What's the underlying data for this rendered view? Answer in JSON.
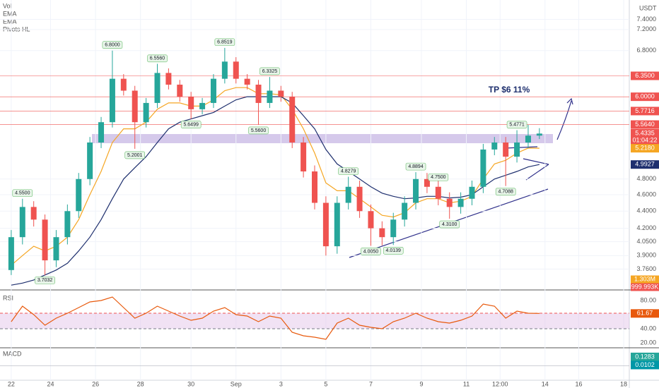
{
  "chart_data": [
    {
      "type": "candlestick",
      "legend": [
        "Vol",
        "EMA",
        "EMA",
        "Pivots HL"
      ],
      "currency": "USDT",
      "annotation": "TP $6 11%",
      "x": [
        0,
        1,
        2,
        3,
        4,
        5,
        6,
        7,
        8,
        9,
        10,
        11,
        12,
        13,
        14,
        15,
        16,
        17,
        18,
        19,
        20,
        21,
        22,
        23,
        24,
        25,
        26,
        27,
        28,
        29,
        30,
        31,
        32,
        33,
        34,
        35,
        36,
        37,
        38,
        39,
        40,
        41,
        42,
        43,
        44,
        45,
        46,
        47
      ],
      "open": [
        3.75,
        4.1,
        4.45,
        4.3,
        3.85,
        4.1,
        4.4,
        4.8,
        5.3,
        5.6,
        6.3,
        6.1,
        5.6,
        5.9,
        6.4,
        6.2,
        6.0,
        5.8,
        5.9,
        6.3,
        6.6,
        6.3,
        6.2,
        5.9,
        6.1,
        6.0,
        5.3,
        4.9,
        4.5,
        4.0,
        4.5,
        4.7,
        4.4,
        4.2,
        4.1,
        4.3,
        4.5,
        4.8,
        4.7,
        4.55,
        4.45,
        4.55,
        4.7,
        5.2,
        5.3,
        5.1,
        5.3,
        5.4
      ],
      "high": [
        4.18,
        4.55,
        4.52,
        4.36,
        4.18,
        4.48,
        4.88,
        5.38,
        5.68,
        6.8,
        6.38,
        6.18,
        5.98,
        6.56,
        6.48,
        6.28,
        6.08,
        5.98,
        6.38,
        6.85,
        6.68,
        6.38,
        6.28,
        6.33,
        6.18,
        6.08,
        5.38,
        4.98,
        4.58,
        4.58,
        4.83,
        4.78,
        4.48,
        4.28,
        4.38,
        4.58,
        4.89,
        4.88,
        4.78,
        4.63,
        4.63,
        4.78,
        5.28,
        5.38,
        5.38,
        5.48,
        5.56,
        5.51
      ],
      "low": [
        3.7,
        4.02,
        4.22,
        3.7,
        3.78,
        4.02,
        4.32,
        4.72,
        5.22,
        5.52,
        6.02,
        5.21,
        5.52,
        5.82,
        6.12,
        5.92,
        5.65,
        5.72,
        5.82,
        6.22,
        6.22,
        6.12,
        5.56,
        5.82,
        5.92,
        5.22,
        4.82,
        4.42,
        3.9,
        3.92,
        4.42,
        4.32,
        4.005,
        4.01,
        4.0139,
        4.22,
        4.42,
        4.62,
        4.47,
        4.31,
        4.37,
        4.47,
        4.62,
        5.12,
        4.71,
        5.02,
        5.22,
        5.35
      ],
      "close": [
        4.1,
        4.45,
        4.3,
        3.85,
        4.1,
        4.4,
        4.8,
        5.3,
        5.6,
        6.3,
        6.1,
        5.6,
        5.9,
        6.4,
        6.2,
        6.0,
        5.8,
        5.9,
        6.3,
        6.6,
        6.3,
        6.2,
        5.9,
        6.1,
        6.0,
        5.3,
        4.9,
        4.5,
        4.0,
        4.5,
        4.7,
        4.4,
        4.2,
        4.1,
        4.3,
        4.5,
        4.8,
        4.7,
        4.55,
        4.45,
        4.55,
        4.7,
        5.2,
        5.3,
        5.1,
        5.3,
        5.4,
        5.43
      ],
      "up_color": "#26a69a",
      "down_color": "#ef5350",
      "series": [
        {
          "color": "#f5a623",
          "values": [
            3.8,
            3.9,
            4.0,
            3.95,
            4.0,
            4.1,
            4.3,
            4.6,
            4.9,
            5.3,
            5.5,
            5.5,
            5.6,
            5.8,
            5.9,
            5.9,
            5.85,
            5.85,
            5.95,
            6.1,
            6.15,
            6.15,
            6.05,
            6.05,
            6.03,
            5.8,
            5.5,
            5.15,
            4.75,
            4.65,
            4.65,
            4.55,
            4.45,
            4.35,
            4.33,
            4.38,
            4.5,
            4.55,
            4.55,
            4.5,
            4.52,
            4.58,
            4.8,
            5.0,
            5.05,
            5.15,
            5.22,
            5.218
          ]
        },
        {
          "color": "#1e2f6e",
          "values": [
            3.6,
            3.62,
            3.65,
            3.7,
            3.75,
            3.82,
            3.95,
            4.1,
            4.3,
            4.55,
            4.8,
            4.95,
            5.1,
            5.3,
            5.5,
            5.6,
            5.65,
            5.7,
            5.75,
            5.85,
            5.95,
            6.0,
            6.0,
            6.0,
            6.0,
            5.9,
            5.7,
            5.5,
            5.2,
            5.0,
            4.9,
            4.8,
            4.7,
            4.62,
            4.58,
            4.55,
            4.56,
            4.58,
            4.58,
            4.56,
            4.57,
            4.6,
            4.7,
            4.8,
            4.85,
            4.9,
            4.96,
            4.9927
          ]
        }
      ],
      "pivots": {
        "x": [
          1,
          3,
          9,
          11,
          13,
          16,
          19,
          22,
          23,
          30,
          32,
          34,
          36,
          38,
          39,
          45,
          44
        ],
        "values": [
          4.55,
          3.7032,
          6.8,
          5.2001,
          6.556,
          5.6499,
          6.8519,
          5.56,
          6.3325,
          4.8279,
          4.005,
          4.0139,
          4.8894,
          4.75,
          4.31,
          5.4771,
          4.7088
        ],
        "value_labels": [
          "4.5500",
          "3.7032",
          "6.8000",
          "5.2001",
          "6.5560",
          "5.6499",
          "6.8519",
          "5.5600",
          "6.3325",
          "4.8279",
          "4.0050",
          "4.0139",
          "4.8894",
          "4.7500",
          "4.3100",
          "5.4771",
          "4.7088"
        ]
      },
      "price_lines": [
        {
          "value": 6.35,
          "label": "6.3500",
          "color": "#ef5350"
        },
        {
          "value": 6.0,
          "label": "6.0000",
          "color": "#ef5350"
        },
        {
          "value": 5.7716,
          "label": "5.7716",
          "color": "#ef5350"
        },
        {
          "value": 5.564,
          "label": "5.5640",
          "color": "#ef5350"
        }
      ],
      "last_price": {
        "value": 5.4335,
        "label": "5.4335",
        "countdown": "01:04:22",
        "color": "#ef5350"
      },
      "ema_labels": [
        {
          "value": 5.218,
          "label": "5.2180",
          "color": "#f5a623"
        },
        {
          "value": 4.9927,
          "label": "4.9927",
          "color": "#1e2f6e"
        }
      ],
      "volume_labels": [
        {
          "label": "1.303M",
          "color": "#f5a623"
        },
        {
          "label": "999.993K",
          "color": "#ef5350"
        }
      ],
      "log_scale": true,
      "ylim": [
        3.56,
        7.8
      ],
      "yticks": [
        {
          "value": 7.4,
          "label": "7.4000"
        },
        {
          "value": 7.2,
          "label": "7.2000"
        },
        {
          "value": 6.8,
          "label": "6.8000"
        },
        {
          "value": 4.8,
          "label": "4.8000"
        },
        {
          "value": 4.6,
          "label": "4.6000"
        },
        {
          "value": 4.4,
          "label": "4.4000"
        },
        {
          "value": 4.2,
          "label": "4.2000"
        },
        {
          "value": 4.05,
          "label": "4.0500"
        },
        {
          "value": 3.9,
          "label": "3.9000"
        },
        {
          "value": 3.76,
          "label": "3.7600"
        }
      ],
      "xlim": [
        -1,
        55
      ],
      "xticks": [
        {
          "value": 0,
          "label": "22"
        },
        {
          "value": 3.5,
          "label": "24"
        },
        {
          "value": 7.5,
          "label": "26"
        },
        {
          "value": 11.5,
          "label": "28"
        },
        {
          "value": 16,
          "label": "30"
        },
        {
          "value": 20,
          "label": "Sep"
        },
        {
          "value": 24,
          "label": "3"
        },
        {
          "value": 28,
          "label": "5"
        },
        {
          "value": 32,
          "label": "7"
        },
        {
          "value": 36.5,
          "label": "9"
        },
        {
          "value": 40.5,
          "label": "11"
        },
        {
          "value": 43.5,
          "label": "12:00"
        },
        {
          "value": 47.5,
          "label": "14"
        },
        {
          "value": 50.5,
          "label": "16"
        },
        {
          "value": 54.5,
          "label": "18"
        }
      ],
      "grid": true
    },
    {
      "type": "line",
      "title": "RSI",
      "color": "#e8590c",
      "values": [
        50,
        72,
        60,
        45,
        55,
        62,
        70,
        78,
        80,
        85,
        70,
        55,
        62,
        72,
        65,
        58,
        52,
        55,
        65,
        70,
        60,
        58,
        50,
        58,
        55,
        35,
        30,
        28,
        25,
        48,
        55,
        45,
        42,
        40,
        50,
        55,
        62,
        55,
        50,
        48,
        52,
        58,
        75,
        72,
        55,
        65,
        62,
        61.67
      ],
      "last_label": "61.67",
      "bands": [
        62,
        40
      ],
      "ylim": [
        14,
        92
      ],
      "yticks": [
        {
          "value": 80,
          "label": "80.00"
        },
        {
          "value": 40,
          "label": "40.00"
        },
        {
          "value": 20,
          "label": "20.00"
        }
      ]
    },
    {
      "type": "labels",
      "title": "MACD",
      "ylim": [
        -0.2,
        0.25
      ],
      "labels": [
        {
          "value": 0.1283,
          "label": "0.1283",
          "color": "#26a69a"
        },
        {
          "value": 0.0102,
          "label": "0.0102",
          "color": "#0097a7"
        }
      ]
    }
  ]
}
